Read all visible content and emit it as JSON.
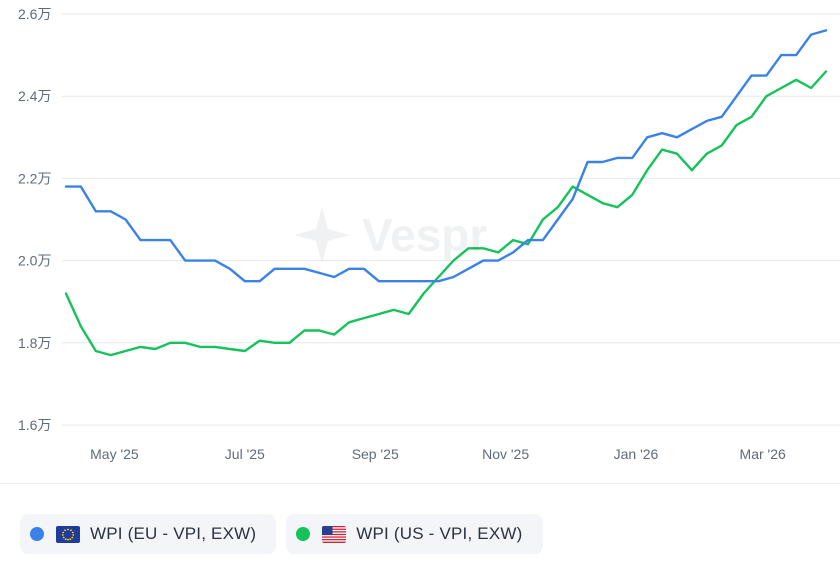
{
  "chart_data": {
    "type": "line",
    "y_unit_suffix": "万",
    "ylim": [
      1.6,
      2.6
    ],
    "yticks": [
      1.6,
      1.8,
      2.0,
      2.2,
      2.4,
      2.6
    ],
    "ytick_labels": [
      "1.6万",
      "1.8万",
      "2.0万",
      "2.2万",
      "2.4万",
      "2.6万"
    ],
    "xlim": [
      0,
      51
    ],
    "xticks": [
      {
        "label": "May '25",
        "x": 3.25
      },
      {
        "label": "Jul '25",
        "x": 12
      },
      {
        "label": "Sep '25",
        "x": 20.75
      },
      {
        "label": "Nov '25",
        "x": 29.5
      },
      {
        "label": "Jan '26",
        "x": 38.25
      },
      {
        "label": "Mar '26",
        "x": 46.75
      }
    ],
    "grid": true,
    "legend_position": "bottom-left",
    "series": [
      {
        "name": "WPI (EU - VPI, EXW)",
        "color": "#3a82e6",
        "flag": "eu",
        "values": [
          2.18,
          2.18,
          2.12,
          2.12,
          2.1,
          2.05,
          2.05,
          2.05,
          2.0,
          2.0,
          2.0,
          1.98,
          1.95,
          1.95,
          1.98,
          1.98,
          1.98,
          1.97,
          1.96,
          1.98,
          1.98,
          1.95,
          1.95,
          1.95,
          1.95,
          1.95,
          1.96,
          1.98,
          2.0,
          2.0,
          2.02,
          2.05,
          2.05,
          2.1,
          2.15,
          2.24,
          2.24,
          2.25,
          2.25,
          2.3,
          2.31,
          2.3,
          2.32,
          2.34,
          2.35,
          2.4,
          2.45,
          2.45,
          2.5,
          2.5,
          2.55,
          2.56
        ]
      },
      {
        "name": "WPI (US - VPI, EXW)",
        "color": "#16c25a",
        "flag": "us",
        "values": [
          1.92,
          1.84,
          1.78,
          1.77,
          1.78,
          1.79,
          1.785,
          1.8,
          1.8,
          1.79,
          1.79,
          1.785,
          1.78,
          1.805,
          1.8,
          1.8,
          1.83,
          1.83,
          1.82,
          1.85,
          1.86,
          1.87,
          1.88,
          1.87,
          1.92,
          1.96,
          2.0,
          2.03,
          2.03,
          2.02,
          2.05,
          2.04,
          2.1,
          2.13,
          2.18,
          2.16,
          2.14,
          2.13,
          2.16,
          2.22,
          2.27,
          2.26,
          2.22,
          2.26,
          2.28,
          2.33,
          2.35,
          2.4,
          2.42,
          2.44,
          2.42,
          2.46
        ]
      }
    ]
  },
  "watermark": {
    "text": "Vespr"
  }
}
